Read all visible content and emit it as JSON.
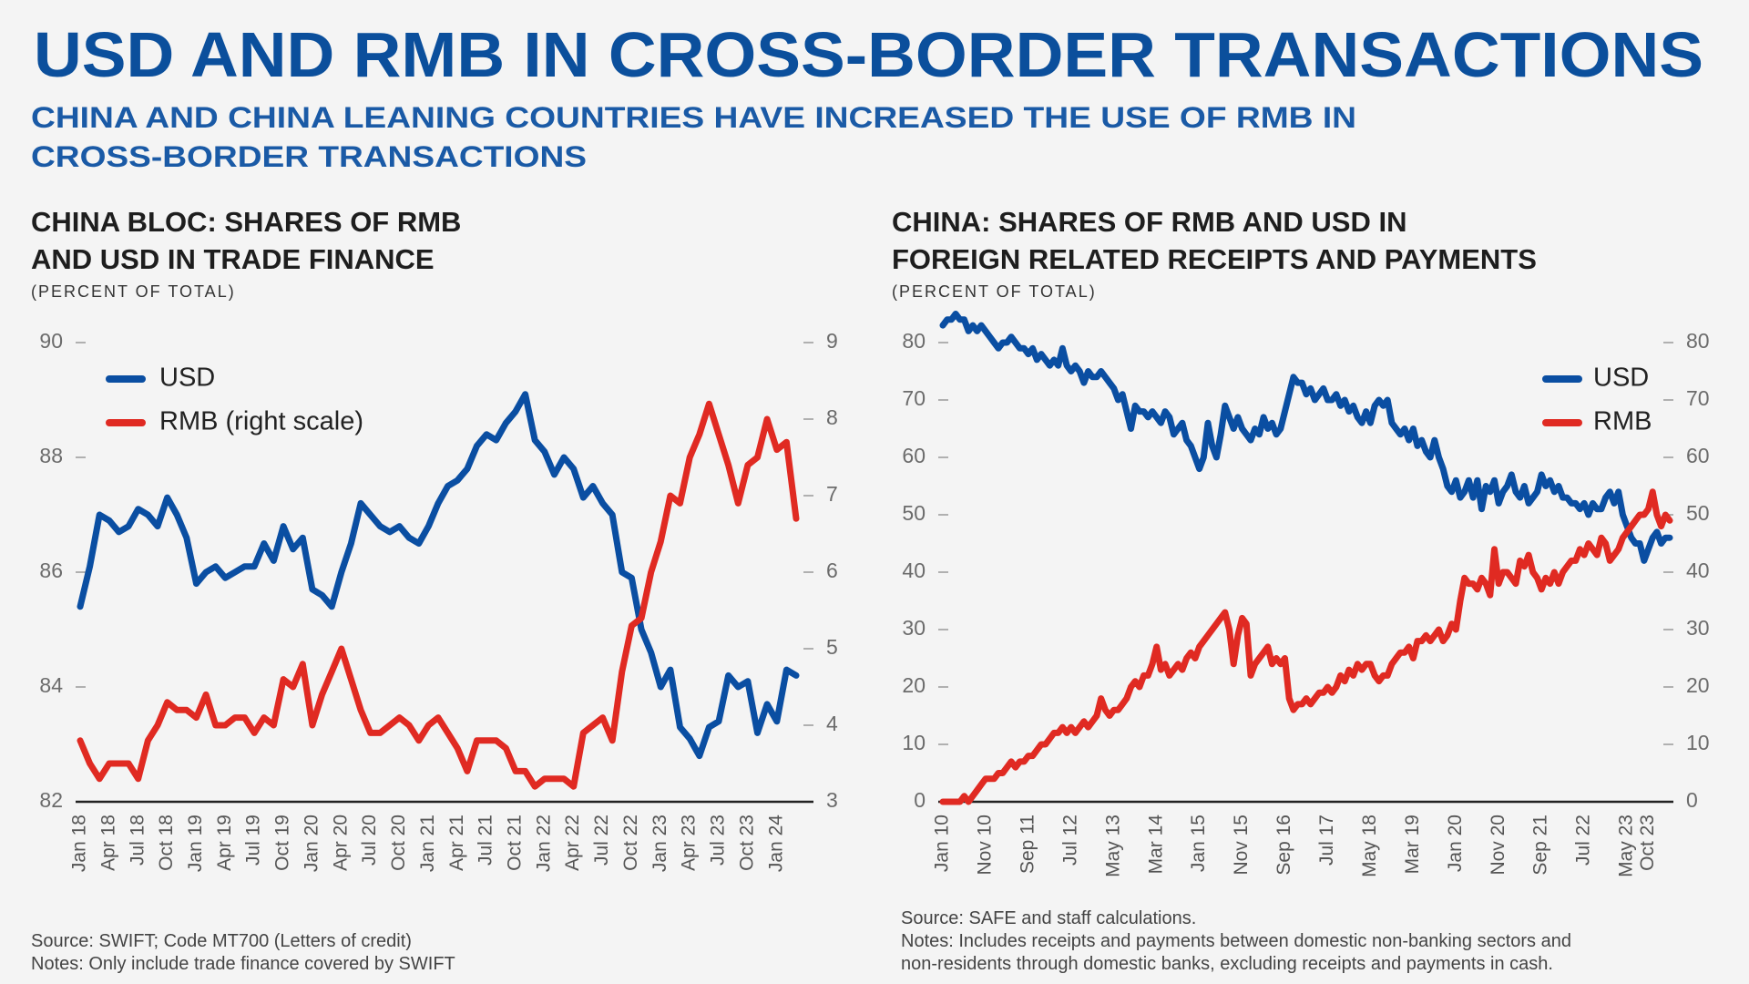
{
  "header": {
    "title": "USD AND RMB IN CROSS-BORDER TRANSACTIONS",
    "subtitle": [
      "CHINA AND CHINA LEANING COUNTRIES HAVE INCREASED THE USE OF RMB IN",
      "CROSS-BORDER TRANSACTIONS"
    ]
  },
  "chart_data": [
    {
      "type": "line",
      "title": [
        "CHINA BLOC: SHARES OF RMB",
        "AND USD IN TRADE FINANCE"
      ],
      "subtitle": "(PERCENT OF TOTAL)",
      "categories": [
        "Jan 18",
        null,
        null,
        "Apr 18",
        null,
        null,
        "Jul 18",
        null,
        null,
        "Oct 18",
        null,
        null,
        "Jan 19",
        null,
        null,
        "Apr 19",
        null,
        null,
        "Jul 19",
        null,
        null,
        "Oct 19",
        null,
        null,
        "Jan 20",
        null,
        null,
        "Apr 20",
        null,
        null,
        "Jul 20",
        null,
        null,
        "Oct 20",
        null,
        null,
        "Jan 21",
        null,
        null,
        "Apr 21",
        null,
        null,
        "Jul 21",
        null,
        null,
        "Oct 21",
        null,
        null,
        "Jan 22",
        null,
        null,
        "Apr 22",
        null,
        null,
        "Jul 22",
        null,
        null,
        "Oct 22",
        null,
        null,
        "Jan 23",
        null,
        null,
        "Apr 23",
        null,
        null,
        "Jul 23",
        null,
        null,
        "Oct 23",
        null,
        null,
        "Jan 24",
        null,
        null
      ],
      "series": [
        {
          "name": "USD",
          "color": "#0a4ea2",
          "values": [
            85.4,
            86.1,
            87.0,
            86.9,
            86.7,
            86.8,
            87.1,
            87.0,
            86.8,
            87.3,
            87.0,
            86.6,
            85.8,
            86.0,
            86.1,
            85.9,
            86.0,
            86.1,
            86.1,
            86.5,
            86.2,
            86.8,
            86.4,
            86.6,
            85.7,
            85.6,
            85.4,
            86.0,
            86.5,
            87.2,
            87.0,
            86.8,
            86.7,
            86.8,
            86.6,
            86.5,
            86.8,
            87.2,
            87.5,
            87.6,
            87.8,
            88.2,
            88.4,
            88.3,
            88.6,
            88.8,
            89.1,
            88.3,
            88.1,
            87.7,
            88.0,
            87.8,
            87.3,
            87.5,
            87.2,
            87.0,
            86.0,
            85.9,
            85.0,
            84.6,
            84.0,
            84.3,
            83.3,
            83.1,
            82.8,
            83.3,
            83.4,
            84.2,
            84.0,
            84.1,
            83.2,
            83.7,
            83.4,
            84.3,
            84.2
          ]
        },
        {
          "name": "RMB (right scale)",
          "color": "#e02a22",
          "axis": "y2",
          "values": [
            3.8,
            3.5,
            3.3,
            3.5,
            3.5,
            3.5,
            3.3,
            3.8,
            4.0,
            4.3,
            4.2,
            4.2,
            4.1,
            4.4,
            4.0,
            4.0,
            4.1,
            4.1,
            3.9,
            4.1,
            4.0,
            4.6,
            4.5,
            4.8,
            4.0,
            4.4,
            4.7,
            5.0,
            4.6,
            4.2,
            3.9,
            3.9,
            4.0,
            4.1,
            4.0,
            3.8,
            4.0,
            4.1,
            3.9,
            3.7,
            3.4,
            3.8,
            3.8,
            3.8,
            3.7,
            3.4,
            3.4,
            3.2,
            3.3,
            3.3,
            3.3,
            3.2,
            3.9,
            4.0,
            4.1,
            3.8,
            4.7,
            5.3,
            5.4,
            6.0,
            6.4,
            7.0,
            6.9,
            7.5,
            7.8,
            8.2,
            7.8,
            7.4,
            6.9,
            7.4,
            7.5,
            8.0,
            7.6,
            7.7,
            6.7
          ]
        }
      ],
      "ylim": [
        82,
        90
      ],
      "yticks": [
        82,
        84,
        86,
        88,
        90
      ],
      "y2lim": [
        3,
        9
      ],
      "y2ticks": [
        3,
        4,
        5,
        6,
        7,
        8,
        9
      ],
      "grid": false,
      "legend": "upper left",
      "notes": [
        "Source: SWIFT; Code MT700 (Letters of credit)",
        "Notes: Only include trade finance covered by SWIFT"
      ]
    },
    {
      "type": "line",
      "title": [
        "CHINA: SHARES OF RMB AND USD IN",
        "FOREIGN RELATED RECEIPTS AND PAYMENTS"
      ],
      "subtitle": "(PERCENT OF TOTAL)",
      "categories": [
        "Jan 10",
        null,
        null,
        null,
        null,
        null,
        null,
        null,
        null,
        null,
        "Nov 10",
        null,
        null,
        null,
        null,
        null,
        null,
        null,
        null,
        null,
        "Sep 11",
        null,
        null,
        null,
        null,
        null,
        null,
        null,
        null,
        null,
        "Jul 12",
        null,
        null,
        null,
        null,
        null,
        null,
        null,
        null,
        null,
        "May 13",
        null,
        null,
        null,
        null,
        null,
        null,
        null,
        null,
        null,
        "Mar 14",
        null,
        null,
        null,
        null,
        null,
        null,
        null,
        null,
        null,
        "Jan 15",
        null,
        null,
        null,
        null,
        null,
        null,
        null,
        null,
        null,
        "Nov 15",
        null,
        null,
        null,
        null,
        null,
        null,
        null,
        null,
        null,
        "Sep 16",
        null,
        null,
        null,
        null,
        null,
        null,
        null,
        null,
        null,
        "Jul 17",
        null,
        null,
        null,
        null,
        null,
        null,
        null,
        null,
        null,
        "May 18",
        null,
        null,
        null,
        null,
        null,
        null,
        null,
        null,
        null,
        "Mar 19",
        null,
        null,
        null,
        null,
        null,
        null,
        null,
        null,
        null,
        "Jan 20",
        null,
        null,
        null,
        null,
        null,
        null,
        null,
        null,
        null,
        "Nov 20",
        null,
        null,
        null,
        null,
        null,
        null,
        null,
        null,
        null,
        "Sep 21",
        null,
        null,
        null,
        null,
        null,
        null,
        null,
        null,
        null,
        "Jul 22",
        null,
        null,
        null,
        null,
        null,
        null,
        null,
        null,
        null,
        "May 23",
        null,
        null,
        null,
        null,
        "Oct 23",
        null,
        null,
        null,
        null,
        null
      ],
      "series": [
        {
          "name": "USD",
          "color": "#0a4ea2",
          "values": [
            83,
            84,
            84,
            85,
            84,
            84,
            82,
            83,
            82,
            83,
            82,
            81,
            80,
            79,
            80,
            80,
            81,
            80,
            79,
            79,
            78,
            79,
            77,
            78,
            77,
            76,
            77,
            76,
            79,
            76,
            75,
            76,
            75,
            73,
            75,
            74,
            74,
            75,
            74,
            73,
            72,
            70,
            71,
            68,
            65,
            69,
            68,
            68,
            67,
            68,
            67,
            66,
            68,
            67,
            64,
            65,
            66,
            63,
            62,
            60,
            58,
            60,
            66,
            62,
            60,
            64,
            69,
            67,
            65,
            67,
            65,
            64,
            63,
            65,
            64,
            67,
            65,
            66,
            64,
            65,
            68,
            71,
            74,
            73,
            73,
            71,
            72,
            70,
            71,
            72,
            70,
            70,
            71,
            69,
            70,
            68,
            69,
            67,
            66,
            68,
            66,
            69,
            70,
            69,
            70,
            66,
            65,
            64,
            65,
            63,
            65,
            62,
            63,
            61,
            60,
            63,
            60,
            58,
            55,
            54,
            56,
            53,
            54,
            56,
            53,
            56,
            51,
            55,
            54,
            56,
            52,
            54,
            55,
            57,
            54,
            53,
            55,
            52,
            53,
            54,
            57,
            55,
            56,
            54,
            55,
            53,
            53,
            52,
            52,
            51,
            52,
            50,
            52,
            51,
            51,
            53,
            54,
            52,
            54,
            50,
            48,
            46,
            45,
            45,
            42,
            44,
            46,
            47,
            45,
            46,
            46
          ]
        },
        {
          "name": "RMB",
          "color": "#e02a22",
          "values": [
            0,
            0,
            0,
            0,
            0,
            1,
            0,
            1,
            2,
            3,
            4,
            4,
            4,
            5,
            5,
            6,
            7,
            6,
            7,
            7,
            8,
            8,
            9,
            10,
            10,
            11,
            12,
            12,
            13,
            12,
            13,
            12,
            13,
            14,
            13,
            14,
            15,
            18,
            16,
            15,
            16,
            16,
            17,
            18,
            20,
            21,
            20,
            22,
            22,
            24,
            27,
            23,
            24,
            22,
            23,
            24,
            23,
            25,
            26,
            25,
            27,
            28,
            29,
            30,
            31,
            32,
            33,
            30,
            24,
            29,
            32,
            31,
            22,
            24,
            25,
            26,
            27,
            24,
            25,
            24,
            25,
            18,
            16,
            17,
            17,
            18,
            17,
            18,
            19,
            19,
            20,
            19,
            20,
            22,
            21,
            23,
            22,
            24,
            23,
            24,
            24,
            22,
            21,
            22,
            22,
            24,
            25,
            26,
            26,
            27,
            25,
            28,
            28,
            29,
            28,
            29,
            30,
            28,
            29,
            31,
            30,
            35,
            39,
            38,
            38,
            37,
            39,
            38,
            36,
            44,
            38,
            40,
            40,
            39,
            38,
            42,
            41,
            43,
            40,
            39,
            37,
            39,
            38,
            40,
            38,
            40,
            41,
            42,
            42,
            44,
            43,
            45,
            44,
            43,
            46,
            45,
            42,
            43,
            44,
            46,
            47,
            48,
            49,
            50,
            50,
            51,
            54,
            50,
            48,
            50,
            49
          ]
        }
      ],
      "ylim": [
        0,
        80
      ],
      "yticks": [
        0,
        10,
        20,
        30,
        40,
        50,
        60,
        70,
        80
      ],
      "y2lim": [
        0,
        80
      ],
      "y2ticks": [
        0,
        10,
        20,
        30,
        40,
        50,
        60,
        70,
        80
      ],
      "grid": false,
      "legend": "upper right",
      "notes": [
        "Source: SAFE and staff calculations.",
        "Notes: Includes receipts and payments between domestic non-banking sectors and",
        "non-residents through domestic banks, excluding receipts and payments in cash."
      ]
    }
  ]
}
